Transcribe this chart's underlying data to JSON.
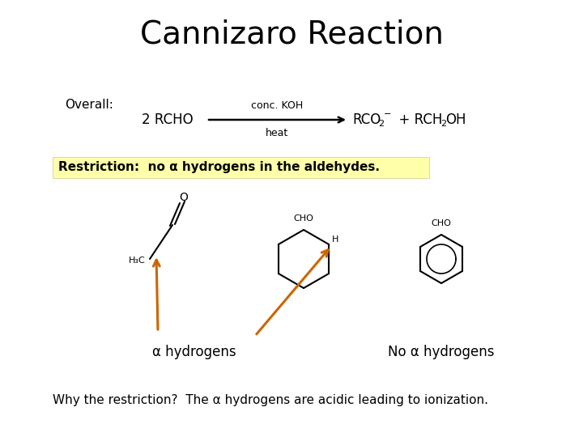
{
  "title": "Cannizaro Reaction",
  "title_fontsize": 28,
  "title_font": "sans-serif",
  "bg_color": "#ffffff",
  "overall_label": "Overall:",
  "reaction_arrow_label_top": "conc. KOH",
  "reaction_arrow_label_bottom": "heat",
  "restriction_text": "Restriction:  no α hydrogens in the aldehydes.",
  "restriction_bg": "#ffffaa",
  "alpha_hydrogens_label": "α hydrogens",
  "no_alpha_label": "No α hydrogens",
  "why_text": "Why the restriction?  The α hydrogens are acidic leading to ionization.",
  "arrow_color": "#cc6600",
  "text_color": "#000000"
}
